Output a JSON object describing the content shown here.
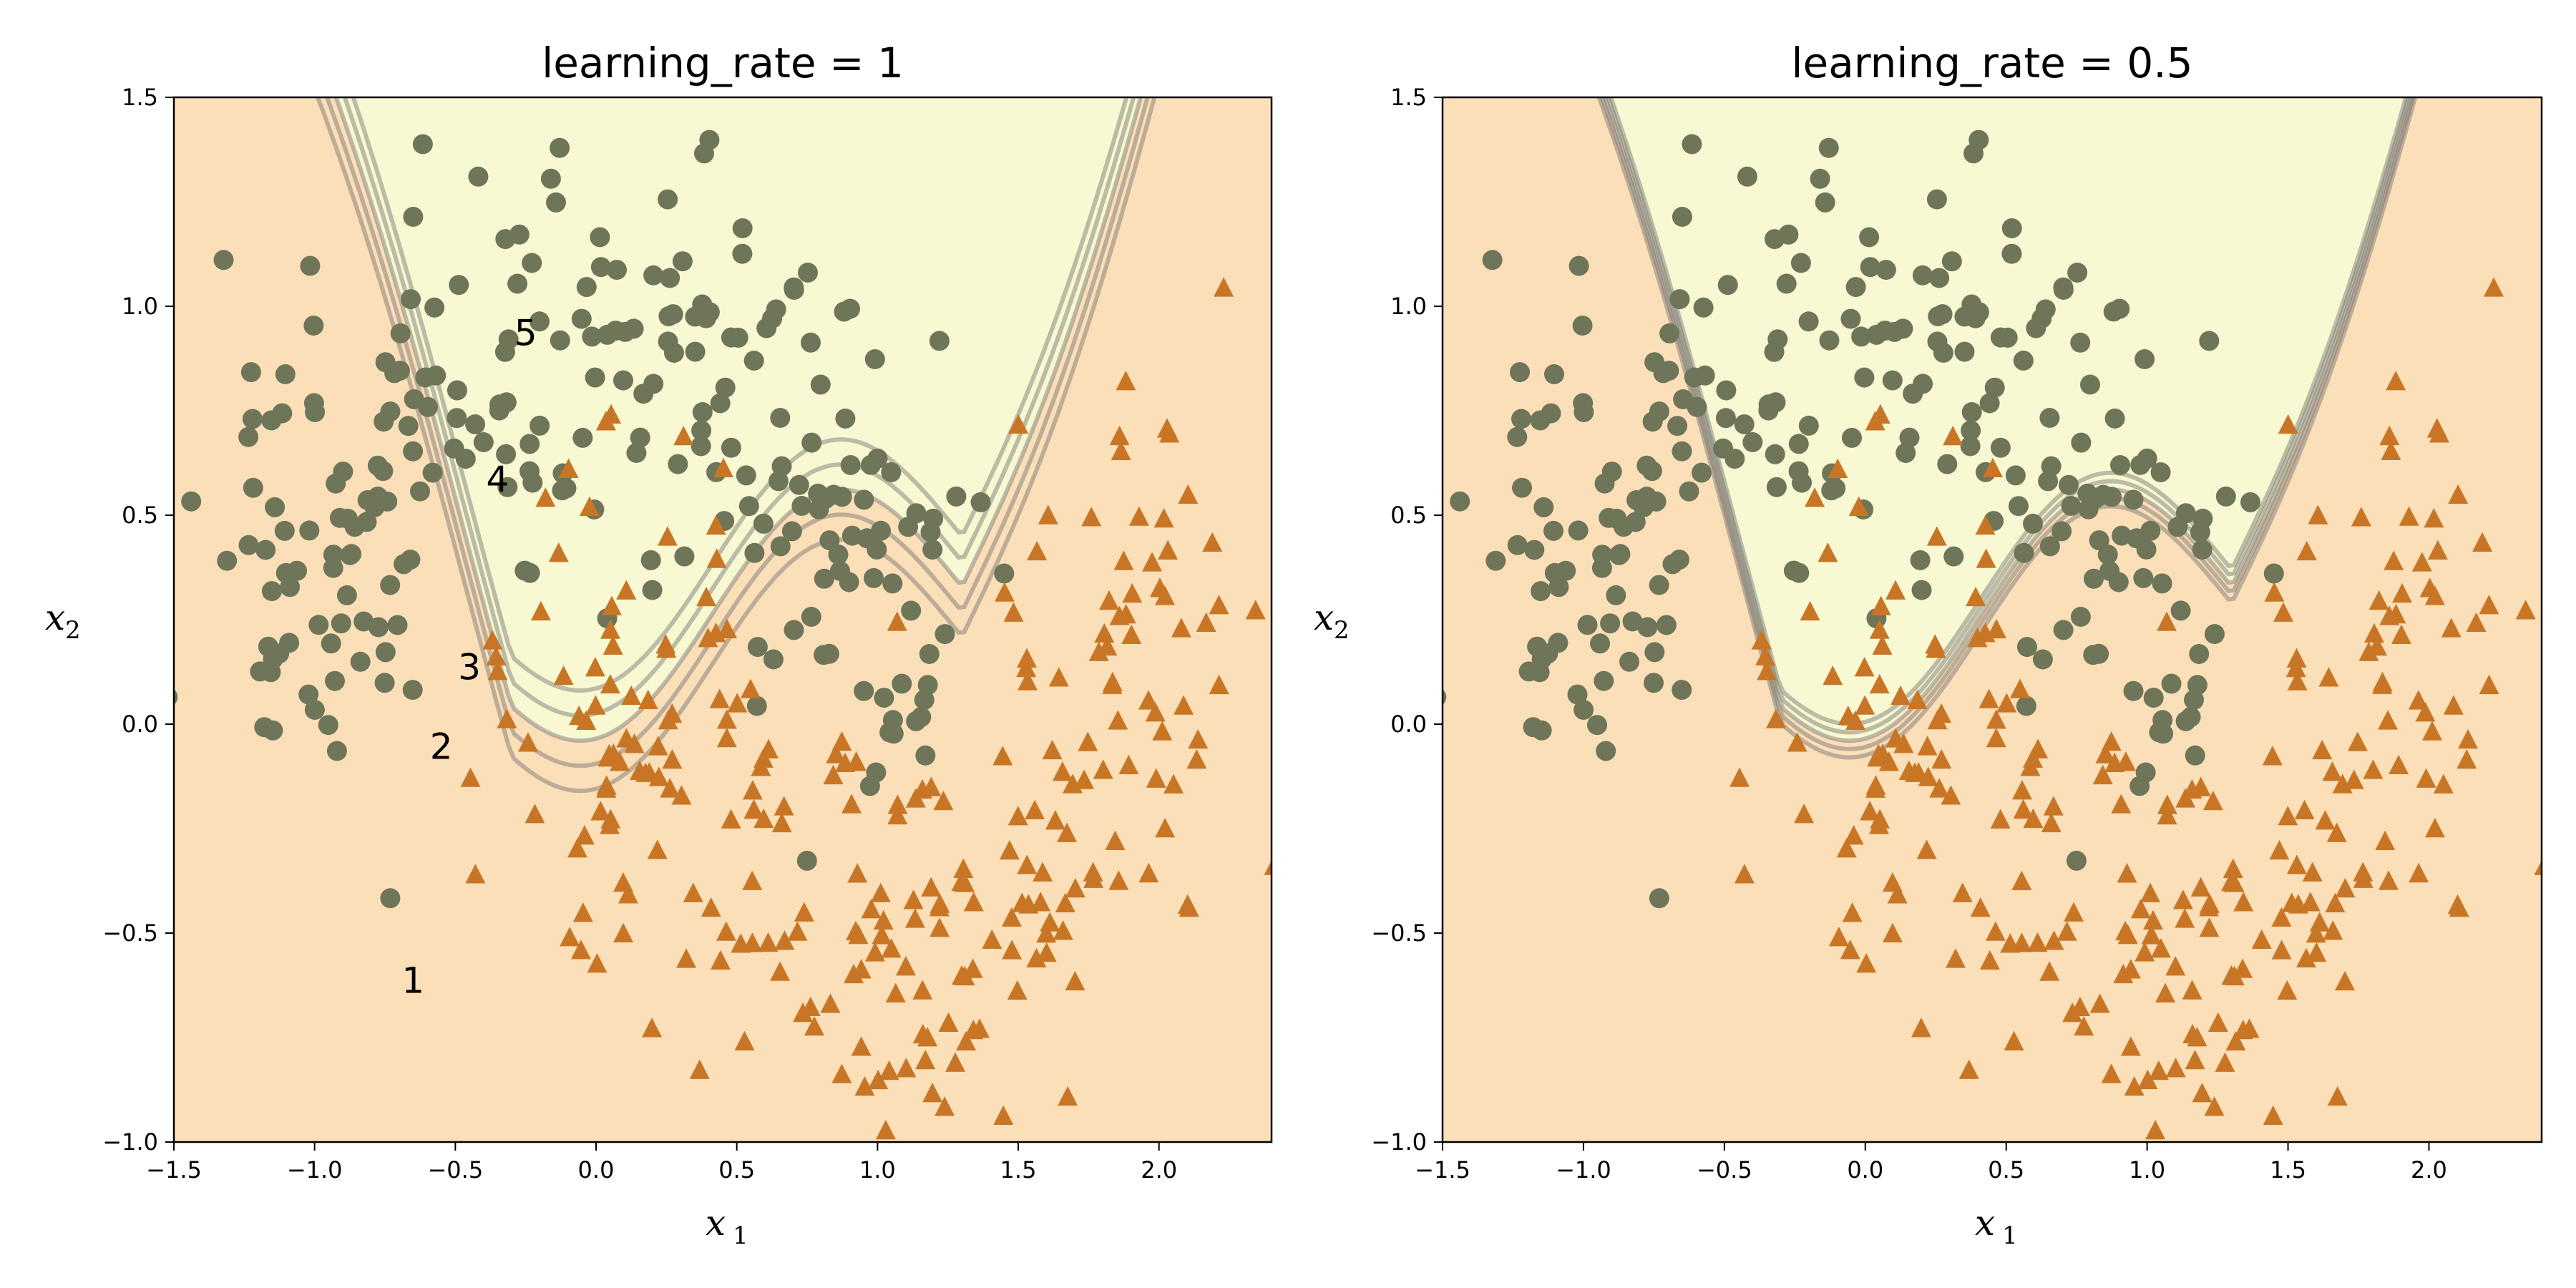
{
  "chart_data": [
    {
      "type": "scatter",
      "title": "learning_rate = 1",
      "xlabel": "x",
      "xlabel_sub": "1",
      "ylabel": "x",
      "ylabel_sub": "2",
      "xlim": [
        -1.5,
        2.4
      ],
      "ylim": [
        -1.0,
        1.5
      ],
      "xticks": [
        -1.5,
        -1.0,
        -0.5,
        0.0,
        0.5,
        1.0,
        1.5,
        2.0
      ],
      "xtick_labels": [
        "−1.5",
        "−1.0",
        "−0.5",
        "0.0",
        "0.5",
        "1.0",
        "1.5",
        "2.0"
      ],
      "yticks": [
        -1.0,
        -0.5,
        0.0,
        0.5,
        1.0,
        1.5
      ],
      "ytick_labels": [
        "−1.0",
        "−0.5",
        "0.0",
        "0.5",
        "1.0",
        "1.5"
      ],
      "grid": false,
      "region_colors": {
        "class0": "#f8f8d2",
        "class1": "#fbdfb8"
      },
      "series": [
        {
          "marker": "circle",
          "color": "#6e7559"
        },
        {
          "marker": "triangle",
          "color": "#c87626"
        }
      ],
      "contour_labels": [
        {
          "text": "1",
          "x": -0.65,
          "y": -0.62
        },
        {
          "text": "2",
          "x": -0.55,
          "y": -0.06
        },
        {
          "text": "3",
          "x": -0.45,
          "y": 0.13
        },
        {
          "text": "4",
          "x": -0.35,
          "y": 0.58
        },
        {
          "text": "5",
          "x": -0.25,
          "y": 0.93
        }
      ]
    },
    {
      "type": "scatter",
      "title": "learning_rate = 0.5",
      "xlabel": "x",
      "xlabel_sub": "1",
      "ylabel": "x",
      "ylabel_sub": "2",
      "xlim": [
        -1.5,
        2.4
      ],
      "ylim": [
        -1.0,
        1.5
      ],
      "xticks": [
        -1.5,
        -1.0,
        -0.5,
        0.0,
        0.5,
        1.0,
        1.5,
        2.0
      ],
      "xtick_labels": [
        "−1.5",
        "−1.0",
        "−0.5",
        "0.0",
        "0.5",
        "1.0",
        "1.5",
        "2.0"
      ],
      "yticks": [
        -1.0,
        -0.5,
        0.0,
        0.5,
        1.0,
        1.5
      ],
      "ytick_labels": [
        "−1.0",
        "−0.5",
        "0.0",
        "0.5",
        "1.0",
        "1.5"
      ],
      "grid": false,
      "region_colors": {
        "class0": "#f8f8d2",
        "class1": "#fbdfb8"
      },
      "series": [
        {
          "marker": "circle",
          "color": "#6e7559"
        },
        {
          "marker": "triangle",
          "color": "#c87626"
        }
      ],
      "contour_labels": []
    }
  ]
}
